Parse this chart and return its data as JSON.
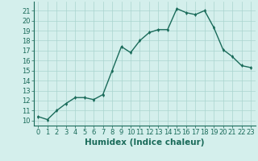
{
  "x": [
    0,
    1,
    2,
    3,
    4,
    5,
    6,
    7,
    8,
    9,
    10,
    11,
    12,
    13,
    14,
    15,
    16,
    17,
    18,
    19,
    20,
    21,
    22,
    23
  ],
  "y": [
    10.4,
    10.1,
    11.0,
    11.7,
    12.3,
    12.3,
    12.1,
    12.6,
    15.0,
    17.4,
    16.8,
    18.0,
    18.8,
    19.1,
    19.1,
    21.2,
    20.8,
    20.6,
    21.0,
    19.3,
    17.1,
    16.4,
    15.5,
    15.3
  ],
  "line_color": "#1a6b5a",
  "marker": "d",
  "marker_size": 2.0,
  "bg_color": "#d4efec",
  "grid_color": "#aad4cf",
  "xlabel": "Humidex (Indice chaleur)",
  "xlim": [
    -0.5,
    23.5
  ],
  "ylim": [
    9.5,
    21.9
  ],
  "yticks": [
    10,
    11,
    12,
    13,
    14,
    15,
    16,
    17,
    18,
    19,
    20,
    21
  ],
  "xticks": [
    0,
    1,
    2,
    3,
    4,
    5,
    6,
    7,
    8,
    9,
    10,
    11,
    12,
    13,
    14,
    15,
    16,
    17,
    18,
    19,
    20,
    21,
    22,
    23
  ],
  "xtick_labels": [
    "0",
    "1",
    "2",
    "3",
    "4",
    "5",
    "6",
    "7",
    "8",
    "9",
    "10",
    "11",
    "12",
    "13",
    "14",
    "15",
    "16",
    "17",
    "18",
    "19",
    "20",
    "21",
    "22",
    "23"
  ],
  "ytick_labels": [
    "10",
    "11",
    "12",
    "13",
    "14",
    "15",
    "16",
    "17",
    "18",
    "19",
    "20",
    "21"
  ],
  "tick_fontsize": 6,
  "xlabel_fontsize": 7.5,
  "line_width": 1.0,
  "tick_color": "#1a6b5a",
  "label_color": "#1a6b5a"
}
